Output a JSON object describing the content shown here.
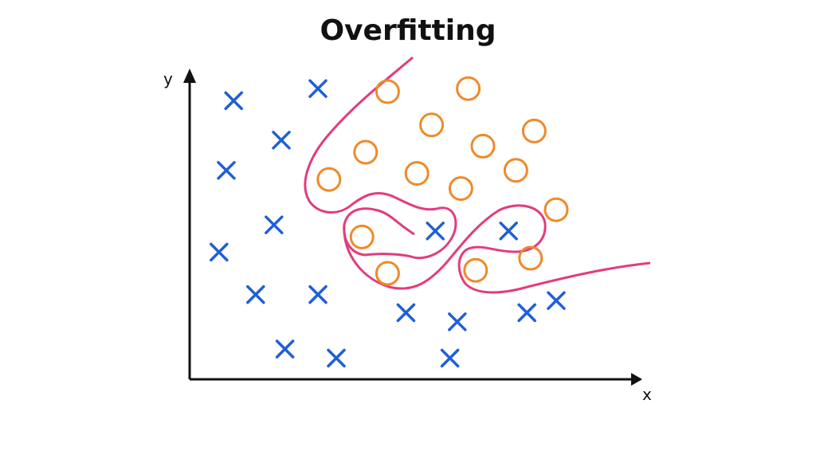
{
  "title": "Overfitting",
  "axes": {
    "x_label": "x",
    "y_label": "y"
  },
  "colors": {
    "axis": "#111111",
    "cross": "#1f5fd6",
    "circle": "#ee8a2a",
    "boundary": "#e23c7e"
  },
  "chart_data": {
    "type": "scatter",
    "series": [
      {
        "marker": "cross",
        "points": [
          [
            1.2,
            9.2
          ],
          [
            3.5,
            9.6
          ],
          [
            2.5,
            7.9
          ],
          [
            1.0,
            6.9
          ],
          [
            2.3,
            5.1
          ],
          [
            0.8,
            4.2
          ],
          [
            1.8,
            2.8
          ],
          [
            3.5,
            2.8
          ],
          [
            2.6,
            1.0
          ],
          [
            4.0,
            0.7
          ],
          [
            5.9,
            2.2
          ],
          [
            6.7,
            4.9
          ],
          [
            7.3,
            1.9
          ],
          [
            8.7,
            4.9
          ],
          [
            9.2,
            2.2
          ],
          [
            10.0,
            2.6
          ],
          [
            7.1,
            0.7
          ]
        ]
      },
      {
        "marker": "circle",
        "points": [
          [
            5.4,
            9.5
          ],
          [
            7.6,
            9.6
          ],
          [
            6.6,
            8.4
          ],
          [
            4.8,
            7.5
          ],
          [
            8.0,
            7.7
          ],
          [
            9.4,
            8.2
          ],
          [
            3.8,
            6.6
          ],
          [
            6.2,
            6.8
          ],
          [
            7.4,
            6.3
          ],
          [
            8.9,
            6.9
          ],
          [
            10.0,
            5.6
          ],
          [
            4.7,
            4.7
          ],
          [
            5.4,
            3.5
          ],
          [
            7.8,
            3.6
          ],
          [
            9.3,
            4.0
          ]
        ]
      }
    ]
  }
}
